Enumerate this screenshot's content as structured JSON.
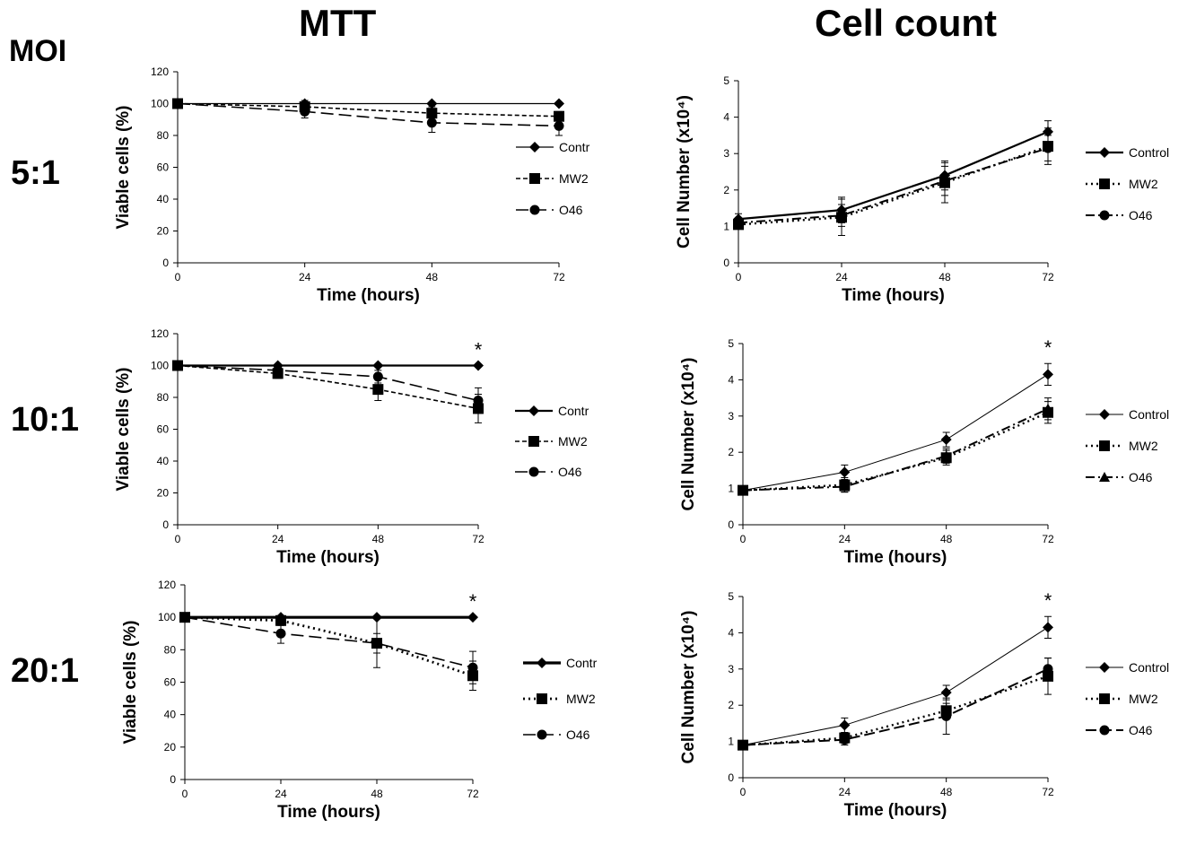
{
  "header": {
    "mtt_title": "MTT",
    "count_title": "Cell count",
    "moi_label": "MOI"
  },
  "rows": [
    {
      "label": "5:1"
    },
    {
      "label": "10:1"
    },
    {
      "label": "20:1"
    }
  ],
  "chart_data": [
    {
      "type": "line",
      "id": "mtt-5",
      "x": [
        0,
        24,
        48,
        72
      ],
      "xlabel": "Time (hours)",
      "ylabel": "Viable cells (%)",
      "ylim": [
        0,
        120
      ],
      "yticks": [
        0,
        20,
        40,
        60,
        80,
        100,
        120
      ],
      "grid": false,
      "legend": "right",
      "series": [
        {
          "name": "Contr",
          "values": [
            100,
            100,
            100,
            100
          ],
          "errors": [
            0,
            0,
            0,
            0
          ],
          "marker": "diamond",
          "dash": "",
          "stroke": 1.3
        },
        {
          "name": "MW2",
          "values": [
            100,
            98,
            94,
            92
          ],
          "errors": [
            0,
            4,
            4,
            3
          ],
          "marker": "square",
          "dash": "5,3",
          "stroke": 1.6
        },
        {
          "name": "O46",
          "values": [
            100,
            95,
            88,
            86
          ],
          "errors": [
            0,
            4,
            6,
            6
          ],
          "marker": "circle",
          "dash": "14,6",
          "stroke": 1.6
        }
      ]
    },
    {
      "type": "line",
      "id": "count-5",
      "x": [
        0,
        24,
        48,
        72
      ],
      "xlabel": "Time (hours)",
      "ylabel": "Cell Number (x10⁴)",
      "ylim": [
        0,
        5
      ],
      "yticks": [
        0,
        1,
        2,
        3,
        4,
        5
      ],
      "grid": false,
      "legend": "right",
      "series": [
        {
          "name": "Control",
          "values": [
            1.2,
            1.45,
            2.4,
            3.6
          ],
          "errors": [
            0.15,
            0.35,
            0.4,
            0.3
          ],
          "marker": "diamond",
          "dash": "",
          "stroke": 2.2
        },
        {
          "name": "MW2",
          "values": [
            1.05,
            1.25,
            2.2,
            3.2
          ],
          "errors": [
            0.1,
            0.5,
            0.55,
            0.5
          ],
          "marker": "square",
          "dash": "2,4",
          "stroke": 2.4
        },
        {
          "name": "O46",
          "values": [
            1.1,
            1.3,
            2.25,
            3.15
          ],
          "errors": [
            0.1,
            0.3,
            0.4,
            0.35
          ],
          "marker": "circle",
          "dash": "10,4,2,4",
          "stroke": 2.0
        }
      ]
    },
    {
      "type": "line",
      "id": "mtt-10",
      "x": [
        0,
        24,
        48,
        72
      ],
      "xlabel": "Time (hours)",
      "ylabel": "Viable cells (%)",
      "ylim": [
        0,
        120
      ],
      "yticks": [
        0,
        20,
        40,
        60,
        80,
        100,
        120
      ],
      "grid": false,
      "legend": "right",
      "annotation": "*",
      "series": [
        {
          "name": "Contr",
          "values": [
            100,
            100,
            100,
            100
          ],
          "errors": [
            0,
            0,
            0,
            0
          ],
          "marker": "diamond",
          "dash": "",
          "stroke": 2.2
        },
        {
          "name": "MW2",
          "values": [
            100,
            95,
            85,
            73
          ],
          "errors": [
            0,
            3,
            7,
            9
          ],
          "marker": "square",
          "dash": "5,3",
          "stroke": 1.6
        },
        {
          "name": "O46",
          "values": [
            100,
            97,
            93,
            78
          ],
          "errors": [
            0,
            3,
            4,
            8
          ],
          "marker": "circle",
          "dash": "14,6",
          "stroke": 1.6
        }
      ]
    },
    {
      "type": "line",
      "id": "count-10",
      "x": [
        0,
        24,
        48,
        72
      ],
      "xlabel": "Time (hours)",
      "ylabel": "Cell Number (x10⁴)",
      "ylim": [
        0,
        5
      ],
      "yticks": [
        0,
        1,
        2,
        3,
        4,
        5
      ],
      "grid": false,
      "legend": "right",
      "annotation": "*",
      "series": [
        {
          "name": "Control",
          "values": [
            0.95,
            1.45,
            2.35,
            4.15
          ],
          "errors": [
            0.05,
            0.2,
            0.2,
            0.3
          ],
          "marker": "diamond",
          "dash": "",
          "stroke": 1.0
        },
        {
          "name": "MW2",
          "values": [
            0.95,
            1.1,
            1.85,
            3.1
          ],
          "errors": [
            0.05,
            0.2,
            0.2,
            0.3
          ],
          "marker": "square",
          "dash": "2,4",
          "stroke": 2.4
        },
        {
          "name": "O46",
          "values": [
            0.95,
            1.05,
            1.9,
            3.2
          ],
          "errors": [
            0.05,
            0.15,
            0.2,
            0.3
          ],
          "marker": "triangle",
          "dash": "10,4,2,4",
          "stroke": 2.0
        }
      ]
    },
    {
      "type": "line",
      "id": "mtt-20",
      "x": [
        0,
        24,
        48,
        72
      ],
      "xlabel": "Time (hours)",
      "ylabel": "Viable cells (%)",
      "ylim": [
        0,
        120
      ],
      "yticks": [
        0,
        20,
        40,
        60,
        80,
        100,
        120
      ],
      "grid": false,
      "legend": "right",
      "annotation": "*",
      "series": [
        {
          "name": "Contr",
          "values": [
            100,
            100,
            100,
            100
          ],
          "errors": [
            0,
            0,
            0,
            0
          ],
          "marker": "diamond",
          "dash": "",
          "stroke": 3.2
        },
        {
          "name": "MW2",
          "values": [
            100,
            98,
            84,
            64
          ],
          "errors": [
            0,
            3,
            15,
            9
          ],
          "marker": "square",
          "dash": "2,4",
          "stroke": 2.8
        },
        {
          "name": "O46",
          "values": [
            100,
            90,
            84,
            69
          ],
          "errors": [
            0,
            6,
            6,
            10
          ],
          "marker": "circle",
          "dash": "14,6",
          "stroke": 1.6
        }
      ]
    },
    {
      "type": "line",
      "id": "count-20",
      "x": [
        0,
        24,
        48,
        72
      ],
      "xlabel": "Time (hours)",
      "ylabel": "Cell Number (x10⁴)",
      "ylim": [
        0,
        5
      ],
      "yticks": [
        0,
        1,
        2,
        3,
        4,
        5
      ],
      "grid": false,
      "legend": "right",
      "annotation": "*",
      "series": [
        {
          "name": "Control",
          "values": [
            0.9,
            1.45,
            2.35,
            4.15
          ],
          "errors": [
            0.05,
            0.2,
            0.2,
            0.3
          ],
          "marker": "diamond",
          "dash": "",
          "stroke": 1.0
        },
        {
          "name": "MW2",
          "values": [
            0.9,
            1.1,
            1.85,
            2.8
          ],
          "errors": [
            0.05,
            0.15,
            0.2,
            0.5
          ],
          "marker": "square",
          "dash": "2,4",
          "stroke": 2.4
        },
        {
          "name": "O46",
          "values": [
            0.9,
            1.05,
            1.7,
            3.0
          ],
          "errors": [
            0.05,
            0.15,
            0.5,
            0.3
          ],
          "marker": "circle",
          "dash": "12,5",
          "stroke": 2.0
        }
      ]
    }
  ]
}
